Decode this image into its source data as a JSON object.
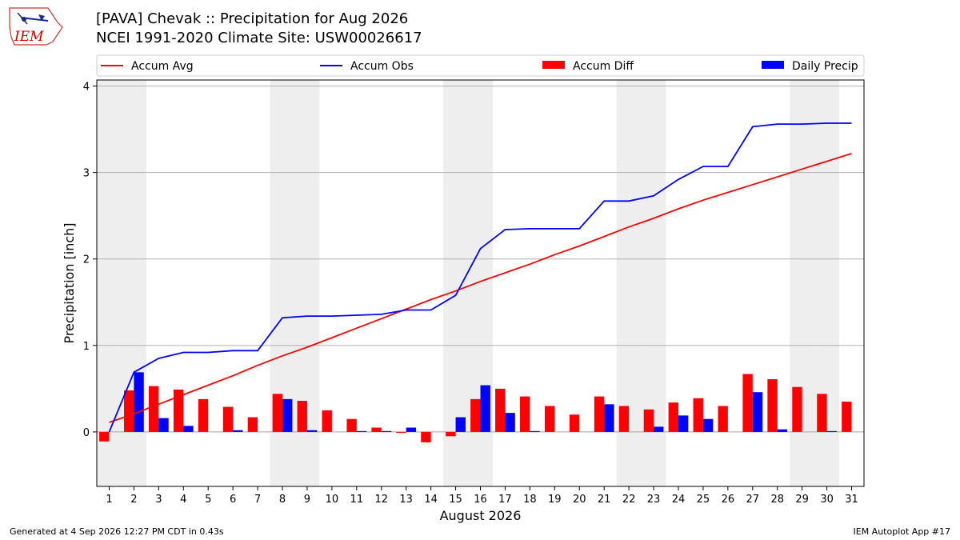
{
  "header": {
    "title_line1": "[PAVA] Chevak :: Precipitation for Aug 2026",
    "title_line2": "NCEI 1991-2020 Climate Site: USW00026617"
  },
  "logo": {
    "text": "IEM",
    "color": "#cc0000"
  },
  "footer": {
    "left": "Generated at 4 Sep 2026 12:27 PM CDT in 0.43s",
    "right": "IEM Autoplot App #17"
  },
  "chart_data": {
    "type": "bar",
    "xlabel": "August 2026",
    "ylabel": "Precipitation [inch]",
    "ylim": [
      -0.63,
      4.07
    ],
    "yticks": [
      0,
      1,
      2,
      3,
      4
    ],
    "days": [
      1,
      2,
      3,
      4,
      5,
      6,
      7,
      8,
      9,
      10,
      11,
      12,
      13,
      14,
      15,
      16,
      17,
      18,
      19,
      20,
      21,
      22,
      23,
      24,
      25,
      26,
      27,
      28,
      29,
      30,
      31
    ],
    "weekend_days": [
      1,
      2,
      8,
      9,
      15,
      16,
      22,
      23,
      29,
      30
    ],
    "grid": "horizontal",
    "legend_position": "top",
    "colors": {
      "avg": "#ff0000",
      "obs": "#0000ff",
      "diff": "#ff0000",
      "daily": "#0000ff",
      "weekend": "#eeeeee"
    },
    "series": [
      {
        "name": "Accum Avg",
        "type": "line",
        "values": [
          0.11,
          0.21,
          0.32,
          0.43,
          0.54,
          0.65,
          0.77,
          0.88,
          0.98,
          1.09,
          1.2,
          1.31,
          1.42,
          1.53,
          1.63,
          1.74,
          1.84,
          1.94,
          2.05,
          2.15,
          2.26,
          2.37,
          2.47,
          2.58,
          2.68,
          2.77,
          2.86,
          2.95,
          3.04,
          3.13,
          3.22
        ]
      },
      {
        "name": "Accum Obs",
        "type": "line",
        "values": [
          0.0,
          0.69,
          0.85,
          0.92,
          0.92,
          0.94,
          0.94,
          1.32,
          1.34,
          1.34,
          1.35,
          1.36,
          1.41,
          1.41,
          1.58,
          2.12,
          2.34,
          2.35,
          2.35,
          2.35,
          2.67,
          2.67,
          2.73,
          2.92,
          3.07,
          3.07,
          3.53,
          3.56,
          3.56,
          3.57,
          3.57
        ]
      },
      {
        "name": "Accum Diff",
        "type": "bar",
        "values": [
          -0.11,
          0.48,
          0.53,
          0.49,
          0.38,
          0.29,
          0.17,
          0.44,
          0.36,
          0.25,
          0.15,
          0.05,
          -0.01,
          -0.12,
          -0.05,
          0.38,
          0.5,
          0.41,
          0.3,
          0.2,
          0.41,
          0.3,
          0.26,
          0.34,
          0.39,
          0.3,
          0.67,
          0.61,
          0.52,
          0.44,
          0.35
        ]
      },
      {
        "name": "Daily Precip",
        "type": "bar",
        "values": [
          0.0,
          0.69,
          0.16,
          0.07,
          0.0,
          0.02,
          0.0,
          0.38,
          0.02,
          0.0,
          0.01,
          0.01,
          0.05,
          0.0,
          0.17,
          0.54,
          0.22,
          0.01,
          0.0,
          0.0,
          0.32,
          0.0,
          0.06,
          0.19,
          0.15,
          0.0,
          0.46,
          0.03,
          0.0,
          0.01,
          0.0
        ]
      }
    ]
  }
}
